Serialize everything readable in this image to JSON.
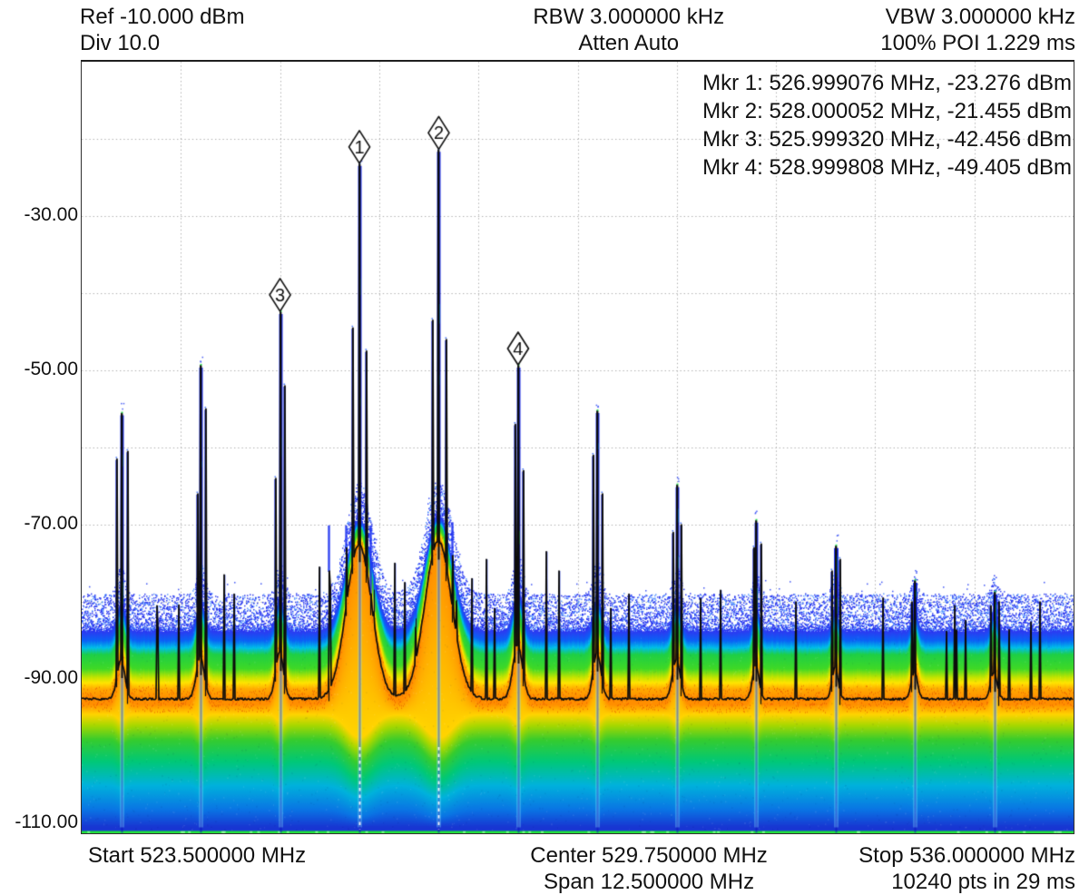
{
  "header": {
    "ref": "Ref -10.000 dBm",
    "div": "Div 10.0",
    "rbw": "RBW 3.000000 kHz",
    "atten": "Atten Auto",
    "vbw": "VBW 3.000000 kHz",
    "poi": "100% POI 1.229 ms"
  },
  "marker_readout": {
    "lines": [
      "Mkr 1: 526.999076 MHz, -23.276 dBm",
      "Mkr 2: 528.000052 MHz, -21.455 dBm",
      "Mkr 3: 525.999320 MHz, -42.456 dBm",
      "Mkr 4: 528.999808 MHz, -49.405 dBm"
    ]
  },
  "y_axis": {
    "labels": [
      "-30.00",
      "-50.00",
      "-70.00",
      "-90.00",
      "-110.00"
    ]
  },
  "footer": {
    "start": "Start 523.500000 MHz",
    "center": "Center 529.750000 MHz",
    "span": "Span 12.500000 MHz",
    "stop": "Stop 536.000000 MHz",
    "points": "10240 pts in 29 ms"
  },
  "chart_data": {
    "type": "spectrum-persistence",
    "title": "Real-time spectrum persistence display with average trace and markers",
    "x": {
      "start_mhz": 523.5,
      "stop_mhz": 536.0,
      "center_mhz": 529.75,
      "span_mhz": 12.5,
      "divisions": 10
    },
    "y": {
      "ref_dbm": -10.0,
      "db_per_div": 10.0,
      "min_dbm": -110.0,
      "divisions": 10,
      "tick_values_dbm": [
        -30,
        -50,
        -70,
        -90,
        -110
      ]
    },
    "rbw_khz": 3.0,
    "vbw_khz": 3.0,
    "atten": "Auto",
    "poi_percent": 100,
    "poi_ms": 1.229,
    "points": 10240,
    "sweep_ms": 29,
    "grid": true,
    "noise": {
      "avg_trace_dbm": -92.6,
      "density_top_dbm": -84.0,
      "speckle_top_dbm": -79.0,
      "floor_bottom_dbm": -109.7
    },
    "markers": [
      {
        "id": 1,
        "freq_mhz": 526.999076,
        "ampl_dbm": -23.276
      },
      {
        "id": 2,
        "freq_mhz": 528.000052,
        "ampl_dbm": -21.455
      },
      {
        "id": 3,
        "freq_mhz": 525.99932,
        "ampl_dbm": -42.456
      },
      {
        "id": 4,
        "freq_mhz": 528.999808,
        "ampl_dbm": -49.405
      }
    ],
    "peaks": [
      {
        "freq_mhz": 524.0,
        "dbm": -55.6,
        "skirt_db": 5.0,
        "skirt_sigma_mhz": 0.05,
        "satellites": [
          {
            "off_mhz": -0.07,
            "dbm": -61.5
          },
          {
            "off_mhz": 0.07,
            "dbm": -60.5
          }
        ]
      },
      {
        "freq_mhz": 525.0,
        "dbm": -49.4,
        "skirt_db": 5.5,
        "skirt_sigma_mhz": 0.05,
        "satellites": [
          {
            "off_mhz": 0.06,
            "dbm": -55.0
          },
          {
            "off_mhz": -0.05,
            "dbm": -66.0
          }
        ]
      },
      {
        "freq_mhz": 526.0,
        "dbm": -42.456,
        "marker": 3,
        "skirt_db": 6.0,
        "skirt_sigma_mhz": 0.05,
        "satellites": [
          {
            "off_mhz": 0.05,
            "dbm": -52.0
          },
          {
            "off_mhz": -0.06,
            "dbm": -64.0
          }
        ]
      },
      {
        "freq_mhz": 527.0,
        "dbm": -23.276,
        "marker": 1,
        "skirt_db": 20.0,
        "skirt_sigma_mhz": 0.16,
        "satellites": [
          {
            "off_mhz": -0.09,
            "dbm": -44.5
          },
          {
            "off_mhz": 0.08,
            "dbm": -47.5
          },
          {
            "off_mhz": -0.17,
            "dbm": -73.0
          },
          {
            "off_mhz": 0.14,
            "dbm": -79.0
          },
          {
            "off_mhz": -0.39,
            "dbm": -76.0
          }
        ]
      },
      {
        "freq_mhz": 528.0,
        "dbm": -21.455,
        "marker": 2,
        "skirt_db": 20.5,
        "skirt_sigma_mhz": 0.17,
        "satellites": [
          {
            "off_mhz": -0.08,
            "dbm": -43.5
          },
          {
            "off_mhz": 0.09,
            "dbm": -46.0
          },
          {
            "off_mhz": -0.08,
            "dbm": -72.6
          },
          {
            "off_mhz": 0.17,
            "dbm": -74.0
          }
        ]
      },
      {
        "freq_mhz": 529.0,
        "dbm": -49.405,
        "marker": 4,
        "skirt_db": 7.0,
        "skirt_sigma_mhz": 0.06,
        "satellites": [
          {
            "off_mhz": -0.05,
            "dbm": -57.0
          },
          {
            "off_mhz": 0.06,
            "dbm": -63.0
          }
        ]
      },
      {
        "freq_mhz": 530.0,
        "dbm": -55.3,
        "skirt_db": 6.0,
        "skirt_sigma_mhz": 0.05,
        "satellites": [
          {
            "off_mhz": -0.06,
            "dbm": -61.0
          },
          {
            "off_mhz": 0.05,
            "dbm": -66.0
          }
        ]
      },
      {
        "freq_mhz": 531.0,
        "dbm": -64.9,
        "skirt_db": 5.0,
        "skirt_sigma_mhz": 0.05,
        "satellites": [
          {
            "off_mhz": 0.05,
            "dbm": -70.0
          },
          {
            "off_mhz": -0.05,
            "dbm": -71.0
          }
        ]
      },
      {
        "freq_mhz": 532.0,
        "dbm": -69.5,
        "skirt_db": 4.5,
        "skirt_sigma_mhz": 0.04,
        "satellites": [
          {
            "off_mhz": -0.04,
            "dbm": -73.0
          },
          {
            "off_mhz": 0.05,
            "dbm": -72.5
          }
        ]
      },
      {
        "freq_mhz": 533.0,
        "dbm": -72.8,
        "skirt_db": 4.0,
        "skirt_sigma_mhz": 0.04,
        "satellites": [
          {
            "off_mhz": 0.05,
            "dbm": -74.5
          },
          {
            "off_mhz": -0.05,
            "dbm": -76.0
          }
        ]
      },
      {
        "freq_mhz": 534.0,
        "dbm": -77.3,
        "skirt_db": 3.5,
        "skirt_sigma_mhz": 0.04,
        "satellites": [
          {
            "off_mhz": -0.05,
            "dbm": -80.0
          }
        ]
      },
      {
        "freq_mhz": 535.0,
        "dbm": -78.8,
        "skirt_db": 3.5,
        "skirt_sigma_mhz": 0.04,
        "satellites": [
          {
            "off_mhz": 0.05,
            "dbm": -80.0
          },
          {
            "off_mhz": -0.05,
            "dbm": -80.5
          }
        ]
      }
    ],
    "spurs_mhz_dbm": [
      [
        524.45,
        -80.5
      ],
      [
        525.3,
        -76.5
      ],
      [
        525.42,
        -79.0
      ],
      [
        526.5,
        -75.5
      ],
      [
        526.63,
        -78.0
      ],
      [
        527.45,
        -75.0
      ],
      [
        527.57,
        -77.5
      ],
      [
        528.42,
        -77.0
      ],
      [
        528.6,
        -74.5
      ],
      [
        529.35,
        -73.5
      ],
      [
        529.52,
        -76.0
      ],
      [
        530.4,
        -79.0
      ],
      [
        531.55,
        -78.5
      ],
      [
        532.5,
        -80.0
      ],
      [
        533.6,
        -79.5
      ],
      [
        534.5,
        -80.5
      ],
      [
        535.58,
        -80.0
      ]
    ],
    "colors": {
      "density_scale": [
        "#2b3cf2",
        "#0a62f5",
        "#00bfe8",
        "#1ecf46",
        "#3fd926",
        "#c4e400",
        "#ffe400",
        "#ffab00",
        "#ff8e00",
        "#ffd400",
        "#a8d800",
        "#36cc2e",
        "#00c878",
        "#00b2dc",
        "#0a74e4",
        "#1836d2"
      ],
      "trace": "#0c0c0c",
      "floor_edge_green": "#22dd3c",
      "grid": "#b0b0b0",
      "marker_fill": "#ffffff",
      "marker_stroke": "#141414"
    }
  }
}
